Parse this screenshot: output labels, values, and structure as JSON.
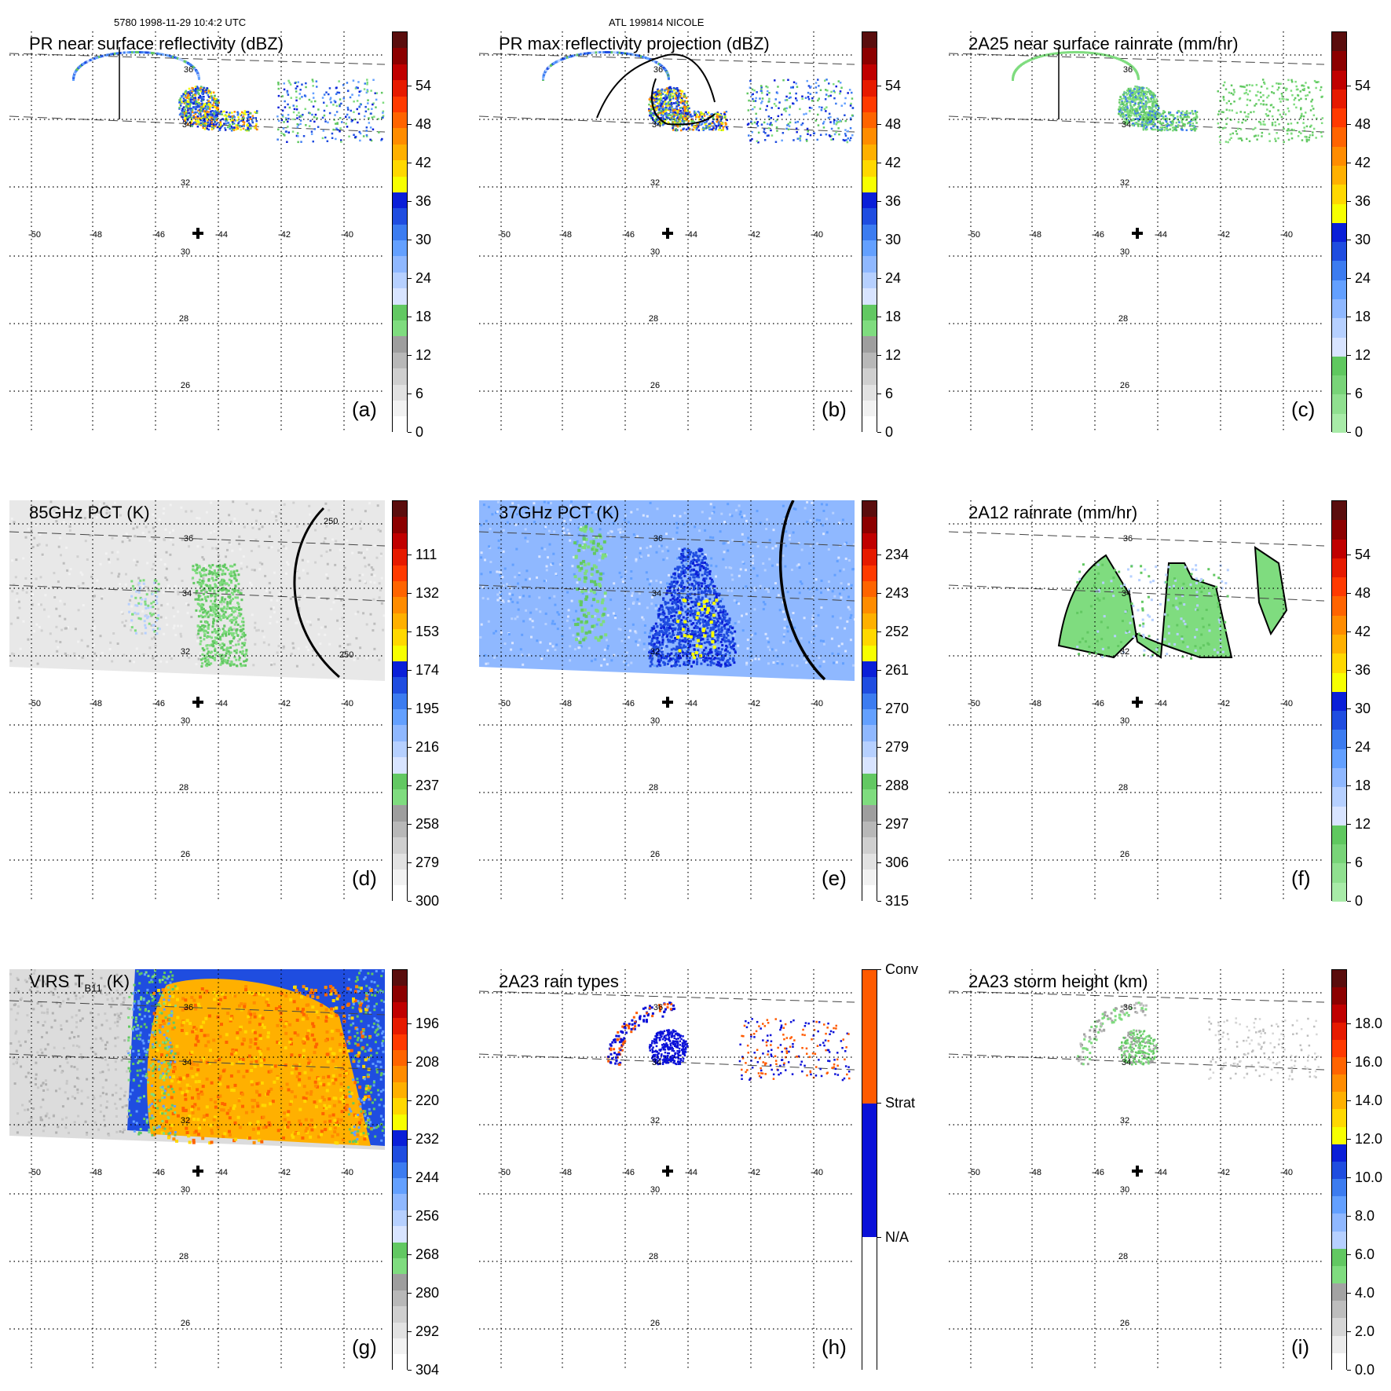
{
  "header": {
    "orbit_time": "5780 1998-11-29 10:4:2 UTC",
    "storm": "ATL 199814 NICOLE"
  },
  "grid": {
    "lon_labels": [
      "-50",
      "-48",
      "-46",
      "-44",
      "-42",
      "-40"
    ],
    "lat_labels": [
      "36",
      "34",
      "32",
      "30",
      "28",
      "26"
    ]
  },
  "panels": [
    {
      "id": "a",
      "letter": "(a)",
      "title": "PR near surface reflectivity (dBZ)",
      "colorbar": [
        "0",
        "6",
        "12",
        "18",
        "24",
        "30",
        "36",
        "42",
        "48",
        "54"
      ],
      "palette": "dbz"
    },
    {
      "id": "b",
      "letter": "(b)",
      "title": "PR max reflectivity projection (dBZ)",
      "colorbar": [
        "0",
        "6",
        "12",
        "18",
        "24",
        "30",
        "36",
        "42",
        "48",
        "54"
      ],
      "palette": "dbz"
    },
    {
      "id": "c",
      "letter": "(c)",
      "title": "2A25 near surface rainrate (mm/hr)",
      "colorbar": [
        "0",
        "6",
        "12",
        "18",
        "24",
        "30",
        "36",
        "42",
        "48",
        "54"
      ],
      "palette": "rain"
    },
    {
      "id": "d",
      "letter": "(d)",
      "title": "85GHz PCT (K)",
      "colorbar": [
        "300",
        "279",
        "258",
        "237",
        "216",
        "195",
        "174",
        "153",
        "132",
        "111"
      ],
      "palette": "dbz",
      "contour_labels": [
        "250",
        "250"
      ]
    },
    {
      "id": "e",
      "letter": "(e)",
      "title": "37GHz PCT (K)",
      "colorbar": [
        "315",
        "306",
        "297",
        "288",
        "279",
        "270",
        "261",
        "252",
        "243",
        "234"
      ],
      "palette": "dbz"
    },
    {
      "id": "f",
      "letter": "(f)",
      "title": "2A12 rainrate (mm/hr)",
      "colorbar": [
        "0",
        "6",
        "12",
        "18",
        "24",
        "30",
        "36",
        "42",
        "48",
        "54"
      ],
      "palette": "rain"
    },
    {
      "id": "g",
      "letter": "(g)",
      "title_main": "VIRS T",
      "title_sub": "B11",
      "title_end": " (K)",
      "colorbar": [
        "304",
        "292",
        "280",
        "268",
        "256",
        "244",
        "232",
        "220",
        "208",
        "196"
      ],
      "palette": "dbz"
    },
    {
      "id": "h",
      "letter": "(h)",
      "title": "2A23 rain types",
      "colorbar": [
        "N/A",
        "Strat",
        "Conv"
      ],
      "palette": "types"
    },
    {
      "id": "i",
      "letter": "(i)",
      "title": "2A23 storm height (km)",
      "colorbar": [
        "0.0",
        "2.0",
        "4.0",
        "6.0",
        "8.0",
        "10.0",
        "12.0",
        "14.0",
        "16.0",
        "18.0"
      ],
      "palette": "height"
    }
  ],
  "colors": {
    "dbz": [
      "#ffffff",
      "#f2f2f2",
      "#e2e2e2",
      "#cfcfcf",
      "#b8b8b8",
      "#9e9e9e",
      "#7fdc7f",
      "#62c862",
      "#d8e4ff",
      "#b6d0ff",
      "#8fb8ff",
      "#63a0ff",
      "#3c7cf0",
      "#1f4de0",
      "#0a1fd8",
      "#f7ff00",
      "#ffd800",
      "#ffb000",
      "#ff8c00",
      "#ff6400",
      "#ff3a00",
      "#e61a00",
      "#c00000",
      "#8c0000",
      "#5a0d0d"
    ],
    "rain": [
      "#a8eba8",
      "#90e090",
      "#78d478",
      "#5fc85f",
      "#d8e4ff",
      "#b6d0ff",
      "#8fb8ff",
      "#63a0ff",
      "#3c7cf0",
      "#1f4de0",
      "#0a1fd8",
      "#f7ff00",
      "#ffd800",
      "#ffb000",
      "#ff8c00",
      "#ff6400",
      "#ff3a00",
      "#e61a00",
      "#c00000",
      "#8c0000",
      "#5a0d0d"
    ],
    "types": [
      "#ffffff",
      "#0a10d8",
      "#ff5a00"
    ],
    "height": [
      "#ffffff",
      "#ececec",
      "#d6d6d6",
      "#bdbdbd",
      "#a3a3a3",
      "#7fdc7f",
      "#62c862",
      "#b6d0ff",
      "#8fb8ff",
      "#63a0ff",
      "#3c7cf0",
      "#1f4de0",
      "#0a1fd8",
      "#f7ff00",
      "#ffd800",
      "#ffb000",
      "#ff8c00",
      "#ff6400",
      "#ff3a00",
      "#e61a00",
      "#c00000",
      "#8c0000",
      "#5a0d0d"
    ]
  }
}
